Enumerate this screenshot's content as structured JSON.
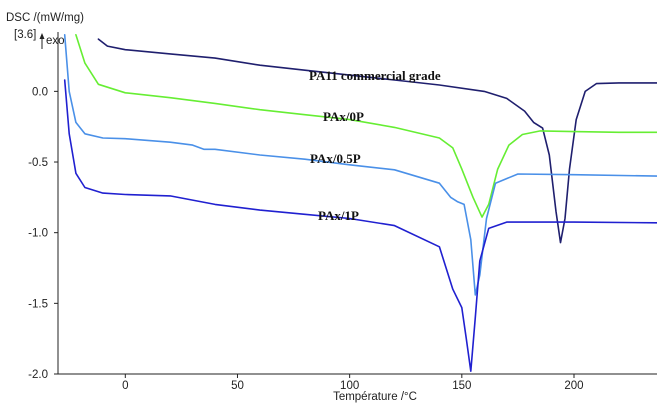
{
  "chart_data": {
    "type": "line",
    "title": "",
    "ylabel": "DSC /(mW/mg)",
    "ylabel_bracket": "[3.6]",
    "exo_label": "exo",
    "xlabel": "Température /°C",
    "xlim": [
      -30,
      237
    ],
    "ylim": [
      -2.0,
      0.42
    ],
    "x_ticks": [
      0,
      50,
      100,
      150,
      200
    ],
    "y_ticks": [
      0.0,
      -0.5,
      -1.0,
      -1.5,
      -2.0
    ],
    "y_tick_labels": [
      "0.0",
      "-0.5",
      "-1.0",
      "-1.5",
      "-2.0"
    ],
    "grid": false,
    "legend": "none",
    "series": [
      {
        "name": "PA11 commercial grade",
        "color": "#1f1f6e",
        "points": [
          [
            -12,
            0.37
          ],
          [
            -8,
            0.32
          ],
          [
            0,
            0.295
          ],
          [
            20,
            0.265
          ],
          [
            40,
            0.235
          ],
          [
            60,
            0.185
          ],
          [
            80,
            0.15
          ],
          [
            100,
            0.115
          ],
          [
            120,
            0.08
          ],
          [
            140,
            0.045
          ],
          [
            160,
            0.0
          ],
          [
            170,
            -0.05
          ],
          [
            178,
            -0.14
          ],
          [
            182,
            -0.22
          ],
          [
            186,
            -0.26
          ],
          [
            189,
            -0.45
          ],
          [
            192,
            -0.85
          ],
          [
            194,
            -1.07
          ],
          [
            196,
            -0.9
          ],
          [
            198,
            -0.55
          ],
          [
            201,
            -0.2
          ],
          [
            205,
            0.0
          ],
          [
            210,
            0.055
          ],
          [
            220,
            0.06
          ],
          [
            237,
            0.06
          ]
        ]
      },
      {
        "name": "PAx/0P",
        "color": "#66ee33",
        "points": [
          [
            -22,
            0.4
          ],
          [
            -18,
            0.2
          ],
          [
            -12,
            0.05
          ],
          [
            0,
            -0.01
          ],
          [
            20,
            -0.045
          ],
          [
            40,
            -0.085
          ],
          [
            60,
            -0.13
          ],
          [
            80,
            -0.165
          ],
          [
            100,
            -0.2
          ],
          [
            120,
            -0.255
          ],
          [
            140,
            -0.33
          ],
          [
            146,
            -0.4
          ],
          [
            150,
            -0.55
          ],
          [
            155,
            -0.75
          ],
          [
            159,
            -0.89
          ],
          [
            162,
            -0.8
          ],
          [
            166,
            -0.55
          ],
          [
            171,
            -0.38
          ],
          [
            177,
            -0.305
          ],
          [
            185,
            -0.28
          ],
          [
            200,
            -0.285
          ],
          [
            220,
            -0.29
          ],
          [
            237,
            -0.29
          ]
        ]
      },
      {
        "name": "PAx/0.5P",
        "color": "#4a90e8",
        "points": [
          [
            -27,
            0.4
          ],
          [
            -25,
            0.0
          ],
          [
            -22,
            -0.22
          ],
          [
            -18,
            -0.3
          ],
          [
            -10,
            -0.33
          ],
          [
            0,
            -0.335
          ],
          [
            20,
            -0.36
          ],
          [
            30,
            -0.38
          ],
          [
            35,
            -0.41
          ],
          [
            40,
            -0.41
          ],
          [
            60,
            -0.45
          ],
          [
            80,
            -0.48
          ],
          [
            100,
            -0.52
          ],
          [
            120,
            -0.555
          ],
          [
            140,
            -0.65
          ],
          [
            145,
            -0.75
          ],
          [
            148,
            -0.78
          ],
          [
            151,
            -0.8
          ],
          [
            154,
            -1.05
          ],
          [
            156,
            -1.44
          ],
          [
            158,
            -1.3
          ],
          [
            161,
            -0.9
          ],
          [
            165,
            -0.65
          ],
          [
            175,
            -0.585
          ],
          [
            200,
            -0.59
          ],
          [
            237,
            -0.6
          ]
        ]
      },
      {
        "name": "PAx/1P",
        "color": "#2020d0",
        "points": [
          [
            -27,
            0.08
          ],
          [
            -25,
            -0.3
          ],
          [
            -22,
            -0.58
          ],
          [
            -18,
            -0.68
          ],
          [
            -10,
            -0.72
          ],
          [
            0,
            -0.73
          ],
          [
            20,
            -0.74
          ],
          [
            40,
            -0.8
          ],
          [
            60,
            -0.84
          ],
          [
            80,
            -0.87
          ],
          [
            100,
            -0.9
          ],
          [
            120,
            -0.95
          ],
          [
            140,
            -1.1
          ],
          [
            146,
            -1.4
          ],
          [
            150,
            -1.53
          ],
          [
            152,
            -1.75
          ],
          [
            154,
            -1.98
          ],
          [
            156,
            -1.6
          ],
          [
            158,
            -1.2
          ],
          [
            162,
            -0.97
          ],
          [
            170,
            -0.925
          ],
          [
            200,
            -0.925
          ],
          [
            237,
            -0.93
          ]
        ]
      }
    ]
  }
}
